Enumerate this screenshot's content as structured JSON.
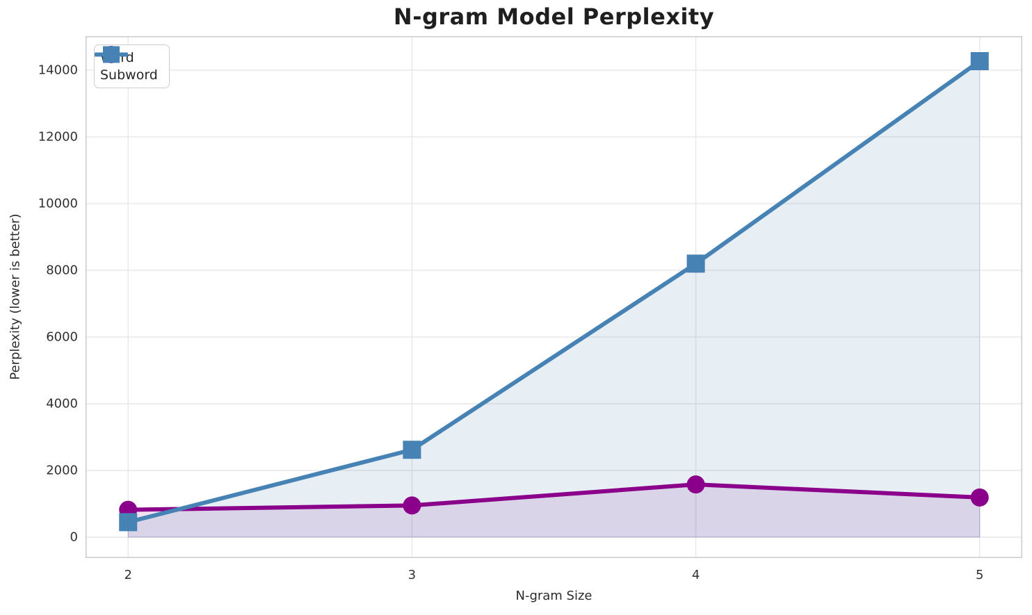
{
  "figure": {
    "background": "#ffffff",
    "text_color": "#262626",
    "grid_color": "#e7e7e7",
    "frame_color": "#cbcbcb"
  },
  "chart_data": {
    "type": "line",
    "title": "N-gram Model Perplexity",
    "xlabel": "N-gram Size",
    "ylabel": "Perplexity (lower is better)",
    "x": [
      2,
      3,
      4,
      5
    ],
    "series": [
      {
        "name": "Word",
        "color": "#8B008B",
        "marker": "circle",
        "values": [
          820,
          950,
          1580,
          1190
        ],
        "fill_alpha": 0.12
      },
      {
        "name": "Subword",
        "color": "#4682B4",
        "marker": "square",
        "values": [
          450,
          2620,
          8200,
          14270
        ],
        "fill_alpha": 0.13
      }
    ],
    "xticks": [
      2,
      3,
      4,
      5
    ],
    "yticks": [
      0,
      2000,
      4000,
      6000,
      8000,
      10000,
      12000,
      14000
    ],
    "xlim": [
      1.85,
      5.15
    ],
    "ylim": [
      -625,
      15020
    ],
    "grid": true,
    "area_fill": true,
    "legend_position": "upper left"
  }
}
